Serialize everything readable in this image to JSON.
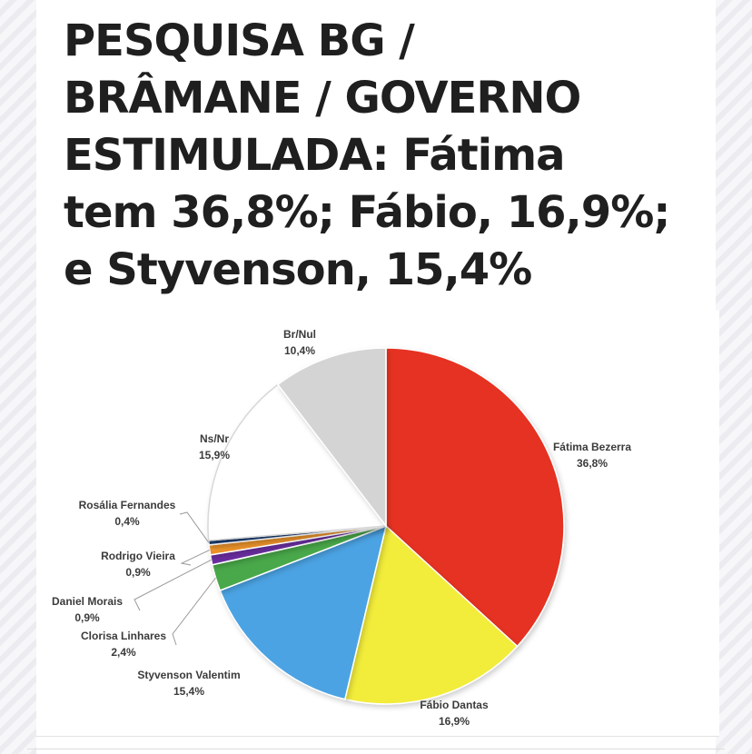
{
  "headline": {
    "line1": "PESQUISA BG /",
    "line2": "BRÂMANE / GOVERNO",
    "line3_caps": "ESTIMULADA",
    "line3_rest": ": Fátima",
    "line4": "tem 36,8%; Fábio, 16,9%;",
    "line5": "e Styvenson, 15,4%"
  },
  "chart_data": {
    "type": "pie",
    "title": "",
    "start": "top, clockwise",
    "slices": [
      {
        "name": "Fátima Bezerra",
        "value": 36.8,
        "label": "36,8%",
        "color": "#e63323"
      },
      {
        "name": "Fábio Dantas",
        "value": 16.9,
        "label": "16,9%",
        "color": "#f2ec3a"
      },
      {
        "name": "Styvenson Valentim",
        "value": 15.4,
        "label": "15,4%",
        "color": "#4ba3e3"
      },
      {
        "name": "Clorisa Linhares",
        "value": 2.4,
        "label": "2,4%",
        "color": "#4aa84a"
      },
      {
        "name": "Daniel Morais",
        "value": 0.9,
        "label": "0,9%",
        "color": "#6b2fa0"
      },
      {
        "name": "Rodrigo Vieira",
        "value": 0.9,
        "label": "0,9%",
        "color": "#e8912b"
      },
      {
        "name": "Rosália Fernandes",
        "value": 0.4,
        "label": "0,4%",
        "color": "#1f3e6e"
      },
      {
        "name": "Ns/Nr",
        "value": 15.9,
        "label": "15,9%",
        "color": "#ffffff"
      },
      {
        "name": "Br/Nul",
        "value": 10.4,
        "label": "10,4%",
        "color": "#d4d4d4"
      }
    ]
  }
}
